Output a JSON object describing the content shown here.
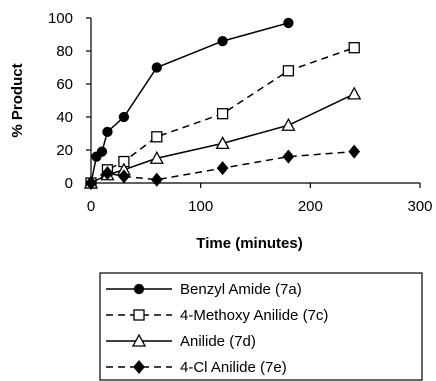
{
  "chart_data": {
    "type": "line",
    "title": "",
    "xlabel": "Time (minutes)",
    "ylabel": "% Product",
    "xlim": [
      0,
      300
    ],
    "ylim": [
      0,
      100
    ],
    "xticks": [
      0,
      100,
      200,
      300
    ],
    "yticks": [
      0,
      20,
      40,
      60,
      80,
      100
    ],
    "grid": false,
    "legend_position": "bottom",
    "series": [
      {
        "name": "Benzyl Amide (7a)",
        "marker": "circle-filled",
        "line": "solid",
        "x": [
          0,
          5,
          10,
          15,
          30,
          60,
          120,
          180
        ],
        "y": [
          0,
          16,
          19,
          31,
          40,
          70,
          86,
          97
        ]
      },
      {
        "name": "4-Methoxy Anilide (7c)",
        "marker": "square-open",
        "line": "dashed",
        "x": [
          0,
          15,
          30,
          60,
          120,
          180,
          240
        ],
        "y": [
          0,
          8,
          13,
          28,
          42,
          68,
          82
        ]
      },
      {
        "name": "Anilide (7d)",
        "marker": "triangle-open",
        "line": "solid",
        "x": [
          0,
          15,
          30,
          60,
          120,
          180,
          240
        ],
        "y": [
          0,
          5,
          8,
          15,
          24,
          35,
          54
        ]
      },
      {
        "name": "4-Cl Anilide (7e)",
        "marker": "diamond-filled",
        "line": "dashed",
        "x": [
          0,
          15,
          30,
          60,
          120,
          180,
          240
        ],
        "y": [
          0,
          6,
          4,
          2,
          9,
          16,
          19
        ]
      }
    ]
  }
}
